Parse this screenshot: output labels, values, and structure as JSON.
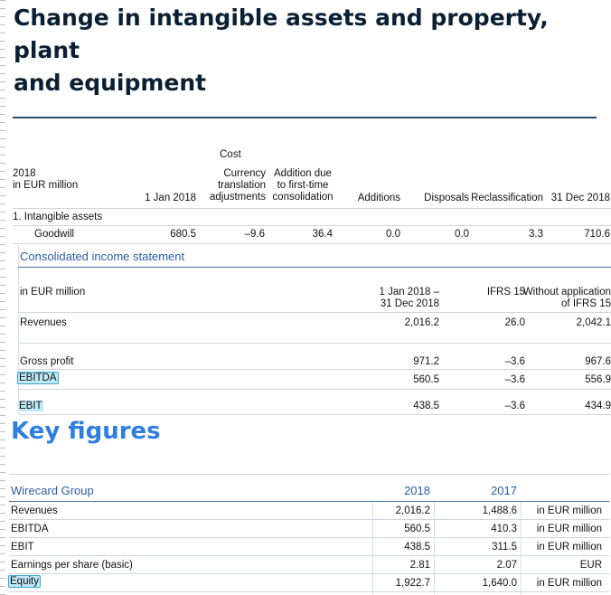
{
  "page": {
    "title_line1": "Change in intangible assets and property, plant",
    "title_line2": "and equipment"
  },
  "asset_table": {
    "group_header": "Cost",
    "row_header_line1": "2018",
    "row_header_line2": "in EUR million",
    "columns": [
      "1 Jan 2018",
      "Currency translation adjustments",
      "Addition due to first-time consolidation",
      "Additions",
      "Disposals",
      "Reclassification",
      "31 Dec 2018"
    ],
    "section_label": "1. Intangible assets",
    "rows": [
      {
        "label": "Goodwill",
        "values": [
          "680.5",
          "–9.6",
          "36.4",
          "0.0",
          "0.0",
          "3.3",
          "710.6"
        ]
      }
    ]
  },
  "income_statement": {
    "title": "Consolidated income statement",
    "row_header": "in EUR million",
    "col_period_line1": "1 Jan 2018 –",
    "col_period_line2": "31 Dec 2018",
    "col_ifrs15": "IFRS 15",
    "col_without_line1": "Without application",
    "col_without_line2": "of IFRS 15",
    "rows": [
      {
        "label": "Revenues",
        "values": [
          "2,016.2",
          "26.0",
          "2,042.1"
        ]
      },
      {
        "label": "Gross profit",
        "values": [
          "971.2",
          "–3.6",
          "967.6"
        ]
      },
      {
        "label": "EBITDA",
        "values": [
          "560.5",
          "–3.6",
          "556.9"
        ]
      },
      {
        "label": "EBIT",
        "values": [
          "438.5",
          "–3.6",
          "434.9"
        ]
      }
    ]
  },
  "key_figures": {
    "title": "Key figures",
    "group_label": "Wirecard Group",
    "col_2018": "2018",
    "col_2017": "2017",
    "rows": [
      {
        "label": "Revenues",
        "v2018": "2,016.2",
        "v2017": "1,488.6",
        "unit": "in EUR million"
      },
      {
        "label": "EBITDA",
        "v2018": "560.5",
        "v2017": "410.3",
        "unit": "in EUR million"
      },
      {
        "label": "EBIT",
        "v2018": "438.5",
        "v2017": "311.5",
        "unit": "in EUR million"
      },
      {
        "label": "Earnings per share (basic)",
        "v2018": "2.81",
        "v2017": "2.07",
        "unit": "EUR"
      },
      {
        "label": "Equity",
        "v2018": "1,922.7",
        "v2017": "1,640.0",
        "unit": "in EUR million"
      }
    ]
  },
  "highlight_color": "#bfe9f7"
}
